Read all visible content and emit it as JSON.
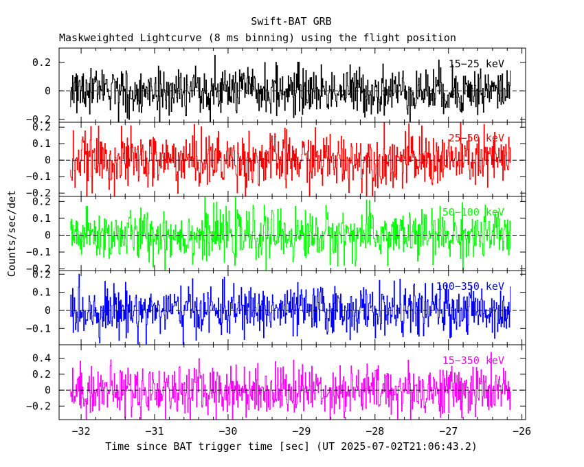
{
  "chart_data": {
    "type": "line",
    "title": "Swift-BAT GRB",
    "subtitle": "Maskweighted Lightcurve (8 ms binning) using the flight position",
    "xlabel": "Time since BAT trigger time [sec] (UT 2025-07-02T21:06:43.2)",
    "ylabel": "Counts/sec/det",
    "xlim": [
      -32.3,
      -25.95
    ],
    "x_start": -32.15,
    "x_end": -26.15,
    "bin_width_sec": 0.008,
    "x_ticks": [
      -32,
      -31,
      -30,
      -29,
      -28,
      -27,
      -26
    ],
    "x_tick_labels": [
      "−32",
      "−31",
      "−30",
      "−29",
      "−28",
      "−27",
      "−26"
    ],
    "series": [
      {
        "name": "15−25 keV",
        "color": "#000000",
        "ylim": [
          -0.22,
          0.3
        ],
        "amplitude": 0.2,
        "baseline": 0,
        "yticks": [
          -0.2,
          0,
          0.2
        ],
        "ytick_labels": [
          "−0.2",
          "0",
          "0.2"
        ]
      },
      {
        "name": "25−50 keV",
        "color": "#ff0000",
        "ylim": [
          -0.22,
          0.23
        ],
        "amplitude": 0.2,
        "baseline": 0,
        "yticks": [
          -0.2,
          -0.1,
          0,
          0.1,
          0.2
        ],
        "ytick_labels": [
          "−0.2",
          "−0.1",
          "0",
          "0.1",
          "0.2"
        ]
      },
      {
        "name": "50−100 keV",
        "color": "#00ff00",
        "ylim": [
          -0.21,
          0.23
        ],
        "amplitude": 0.18,
        "baseline": 0,
        "yticks": [
          -0.2,
          -0.1,
          0,
          0.1,
          0.2
        ],
        "ytick_labels": [
          "−0.2",
          "−0.1",
          "0",
          "0.1",
          "0.2"
        ]
      },
      {
        "name": "100−350 keV",
        "color": "#0000ff",
        "ylim": [
          -0.19,
          0.22
        ],
        "amplitude": 0.16,
        "baseline": 0,
        "yticks": [
          -0.1,
          0,
          0.1,
          0.2
        ],
        "ytick_labels": [
          "−0.1",
          "0",
          "0.1",
          "0.2"
        ]
      },
      {
        "name": "15−350 keV",
        "color": "#ff00ff",
        "ylim": [
          -0.37,
          0.57
        ],
        "amplitude": 0.38,
        "baseline": 0,
        "yticks": [
          -0.2,
          0,
          0.2,
          0.4
        ],
        "ytick_labels": [
          "−0.2",
          "0",
          "0.2",
          "0.4"
        ]
      }
    ]
  }
}
